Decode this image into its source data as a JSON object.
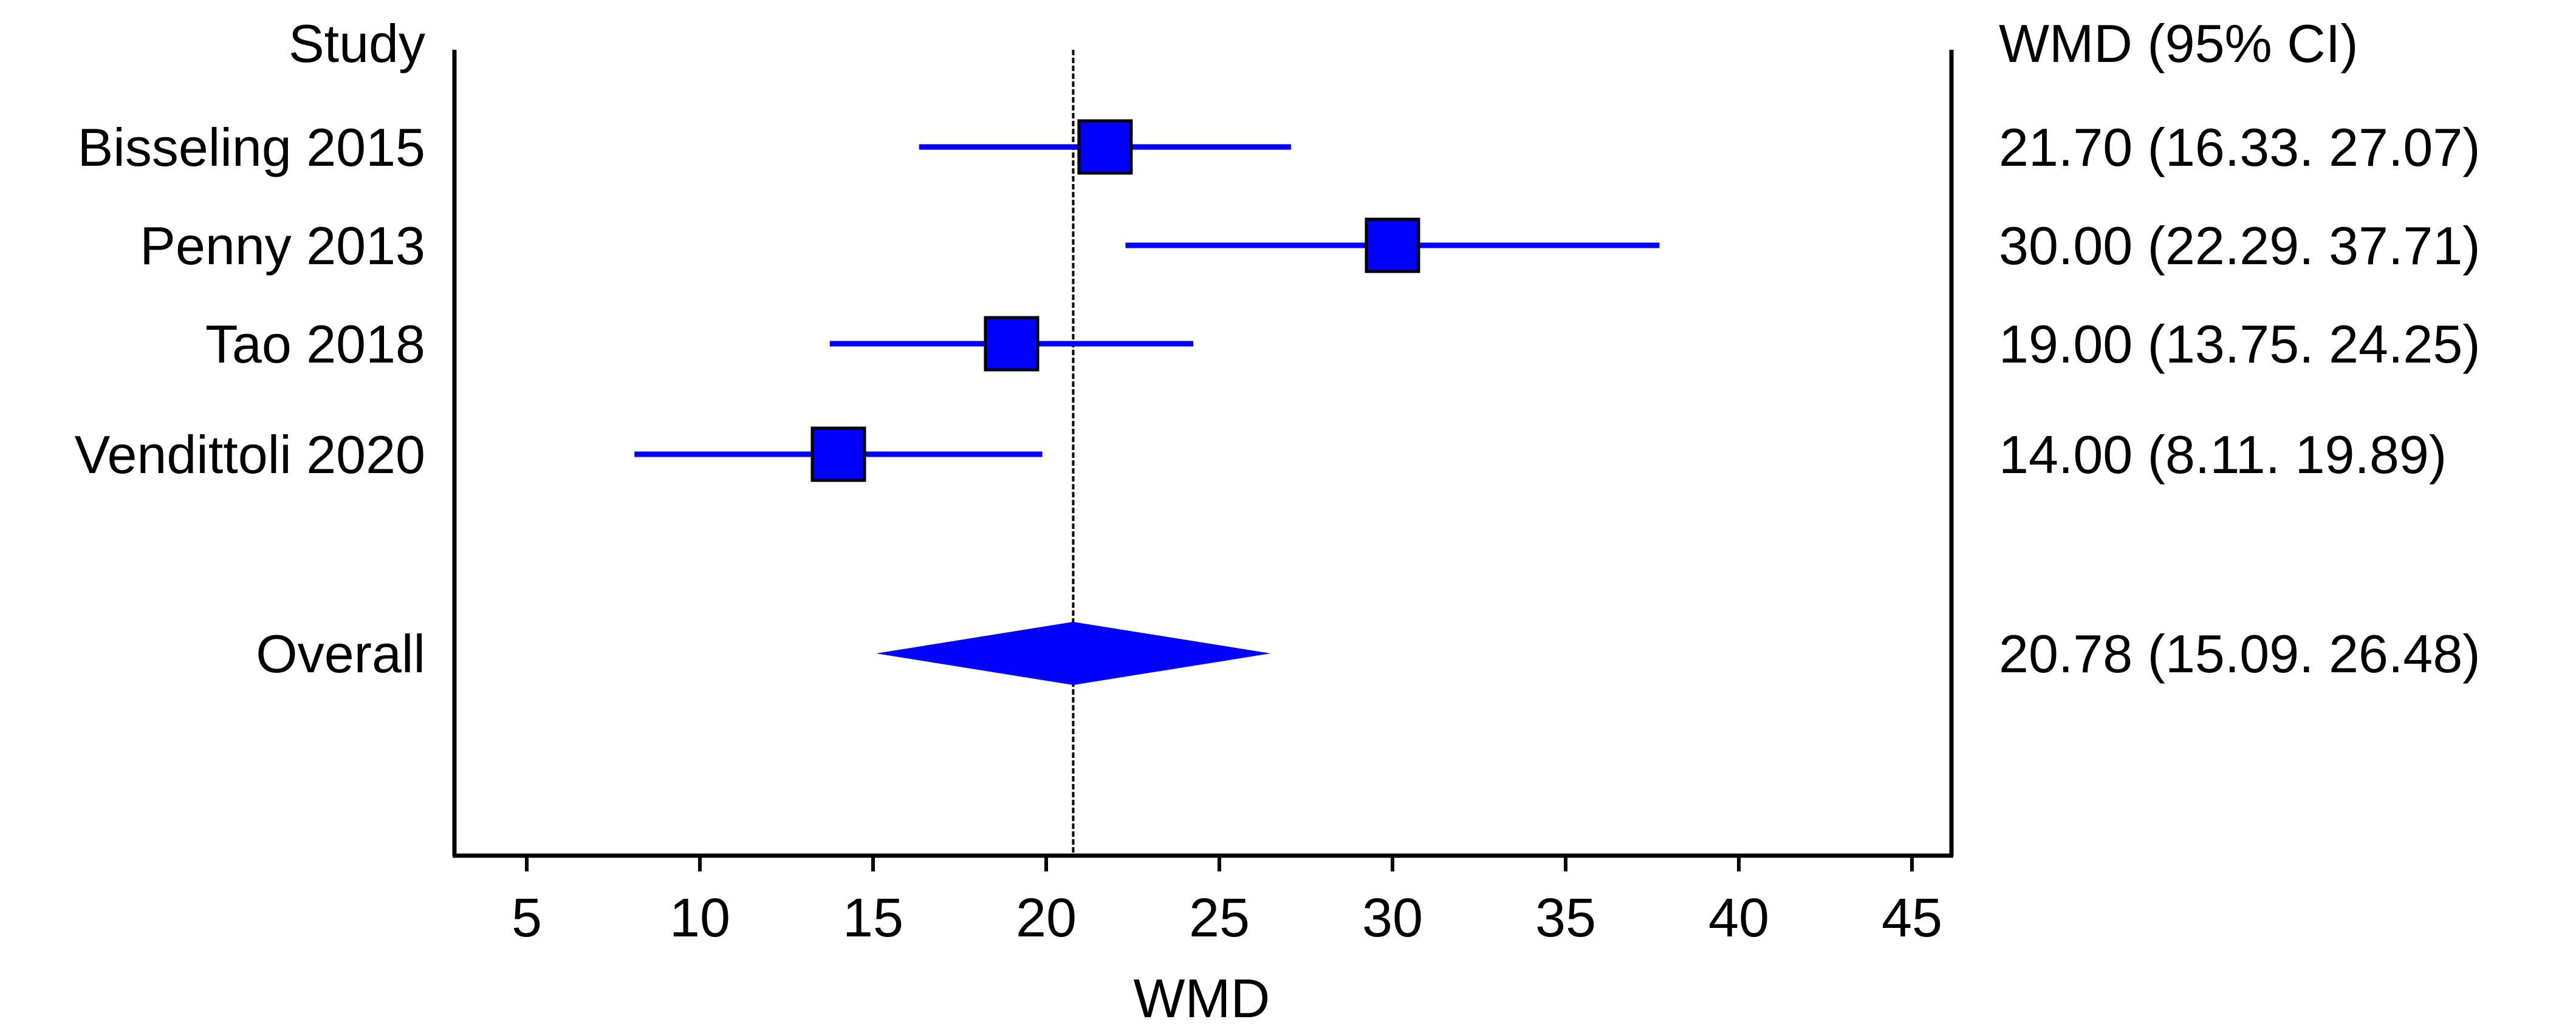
{
  "chart_data": {
    "type": "forest",
    "study_header": "Study",
    "estimate_header": "WMD (95% CI)",
    "xlabel": "WMD",
    "xlim": [
      3,
      46
    ],
    "xticks": [
      5,
      10,
      15,
      20,
      25,
      30,
      35,
      40,
      45
    ],
    "reference_line": 20.78,
    "studies": [
      {
        "label": "Bisseling 2015",
        "estimate": 21.7,
        "ci_low": 16.33,
        "ci_high": 27.07,
        "text": "21.70 (16.33. 27.07)"
      },
      {
        "label": "Penny 2013",
        "estimate": 30.0,
        "ci_low": 22.29,
        "ci_high": 37.71,
        "text": "30.00 (22.29. 37.71)"
      },
      {
        "label": "Tao 2018",
        "estimate": 19.0,
        "ci_low": 13.75,
        "ci_high": 24.25,
        "text": "19.00 (13.75. 24.25)"
      },
      {
        "label": "Vendittoli 2020",
        "estimate": 14.0,
        "ci_low": 8.11,
        "ci_high": 19.89,
        "text": "14.00 (8.11. 19.89)"
      }
    ],
    "overall": {
      "label": "Overall",
      "estimate": 20.78,
      "ci_low": 15.09,
      "ci_high": 26.48,
      "text": "20.78 (15.09. 26.48)"
    },
    "colors": {
      "marker": "#0000ff",
      "line": "#0000ff",
      "axis": "#000000"
    }
  }
}
